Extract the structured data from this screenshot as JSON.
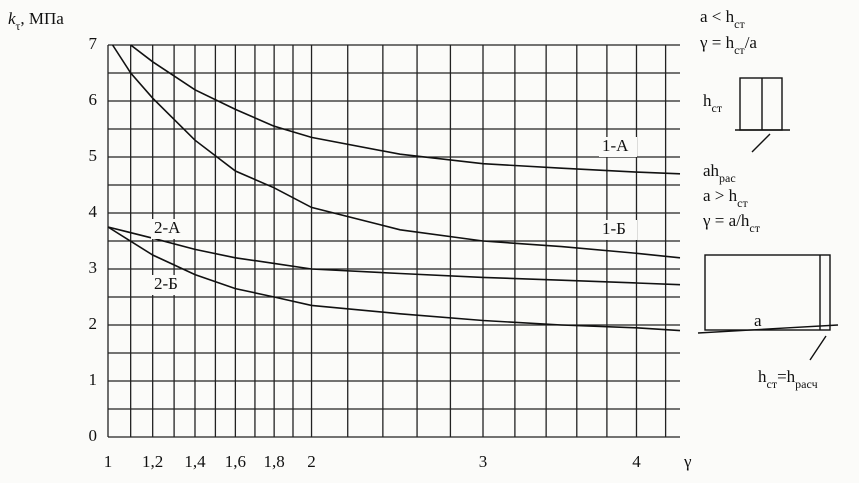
{
  "chart_data": {
    "type": "line",
    "y_label": [
      "k",
      "τ",
      ", МПа"
    ],
    "x_label": "γ",
    "xlim": [
      1,
      4.3
    ],
    "ylim": [
      0,
      7
    ],
    "xticks": [
      1,
      {
        "value": 1.2,
        "label": "1,2"
      },
      {
        "value": 1.4,
        "label": "1,4"
      },
      {
        "value": 1.6,
        "label": "1,6"
      },
      {
        "value": 1.8,
        "label": "1,8"
      },
      2,
      3,
      4
    ],
    "x_minor_grid": [
      1.1,
      1.3,
      1.5,
      1.7,
      1.9,
      2.2,
      2.4,
      2.6,
      2.8,
      3.2,
      3.4,
      3.6,
      3.8,
      4.2
    ],
    "yticks": [
      0,
      1,
      2,
      3,
      4,
      5,
      6,
      7
    ],
    "y_minor_grid": [
      0.5,
      1.5,
      2.5,
      3.5,
      4.5,
      5.5,
      6.5
    ],
    "grid": true,
    "series": [
      {
        "name": "1-А",
        "color": "#111111",
        "x": [
          1.1,
          1.2,
          1.4,
          1.6,
          1.8,
          2,
          2.5,
          3,
          3.5,
          4,
          4.3
        ],
        "values": [
          7.0,
          6.7,
          6.2,
          5.85,
          5.55,
          5.35,
          5.05,
          4.88,
          4.8,
          4.73,
          4.7
        ]
      },
      {
        "name": "1-Б",
        "color": "#111111",
        "x": [
          1.02,
          1.1,
          1.2,
          1.4,
          1.6,
          1.8,
          2,
          2.5,
          3,
          3.5,
          4,
          4.3
        ],
        "values": [
          7.0,
          6.5,
          6.05,
          5.3,
          4.75,
          4.45,
          4.1,
          3.7,
          3.5,
          3.4,
          3.28,
          3.2
        ]
      },
      {
        "name": "2-А",
        "color": "#111111",
        "x": [
          1,
          1.2,
          1.4,
          1.6,
          1.8,
          2,
          2.5,
          3,
          3.5,
          4,
          4.3
        ],
        "values": [
          3.75,
          3.55,
          3.35,
          3.2,
          3.1,
          3.0,
          2.92,
          2.85,
          2.8,
          2.75,
          2.72
        ]
      },
      {
        "name": "2-Б",
        "color": "#111111",
        "x": [
          1,
          1.2,
          1.4,
          1.6,
          1.8,
          2,
          2.5,
          3,
          3.5,
          4,
          4.3
        ],
        "values": [
          3.75,
          3.25,
          2.9,
          2.65,
          2.5,
          2.35,
          2.2,
          2.08,
          2.0,
          1.95,
          1.9
        ]
      }
    ]
  },
  "diagram": {
    "labels": [
      [
        "a < h",
        "ст"
      ],
      [
        "γ = h",
        "ст",
        "/a"
      ],
      [
        "h",
        "ст"
      ],
      [
        "ah",
        "рас"
      ],
      [
        "a > h",
        "ст"
      ],
      [
        "γ = a/h",
        "ст"
      ],
      [
        "a"
      ],
      [
        "h",
        "ст",
        "=h",
        "расч"
      ]
    ]
  }
}
